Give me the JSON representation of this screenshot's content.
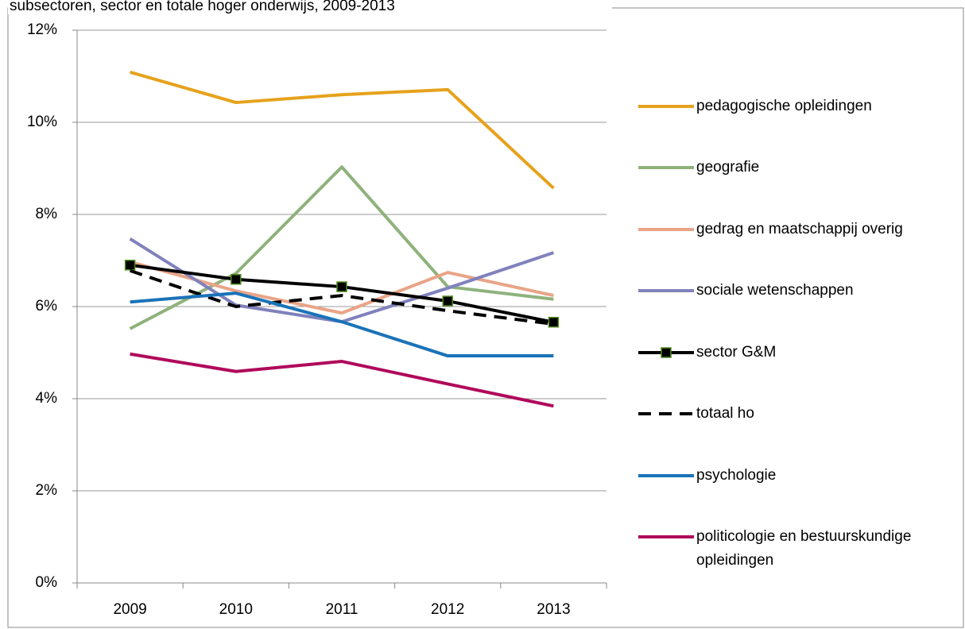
{
  "chart_data": {
    "type": "line",
    "title": "subsectoren, sector en totale hoger onderwijs, 2009-2013",
    "categories": [
      "2009",
      "2010",
      "2011",
      "2012",
      "2013"
    ],
    "ylim": [
      0,
      12
    ],
    "yticks": [
      {
        "value": 0,
        "label": "0%"
      },
      {
        "value": 2,
        "label": "2%"
      },
      {
        "value": 4,
        "label": "4%"
      },
      {
        "value": 6,
        "label": "6%"
      },
      {
        "value": 8,
        "label": "8%"
      },
      {
        "value": 10,
        "label": "10%"
      },
      {
        "value": 12,
        "label": "12%"
      }
    ],
    "grid": true,
    "legend": "right",
    "series": [
      {
        "name": "pedagogische opleidingen",
        "color": "#e6a21c",
        "values": [
          11.09,
          10.43,
          10.6,
          10.71,
          8.57
        ]
      },
      {
        "name": "geografie",
        "color": "#8fb27c",
        "values": [
          5.52,
          6.72,
          9.03,
          6.43,
          6.16
        ]
      },
      {
        "name": "gedrag en maatschappij overig",
        "color": "#e9a487",
        "values": [
          6.97,
          6.34,
          5.86,
          6.74,
          6.24
        ]
      },
      {
        "name": "sociale wetenschappen",
        "color": "#8082bd",
        "values": [
          7.47,
          6.03,
          5.67,
          6.4,
          7.17
        ]
      },
      {
        "name": "sector G&M",
        "color": "#000000",
        "marker": "square",
        "marker_edge": "#4e8a1e",
        "values": [
          6.9,
          6.59,
          6.43,
          6.12,
          5.66
        ]
      },
      {
        "name": "totaal ho",
        "color": "#000000",
        "dashed": true,
        "values": [
          6.78,
          6.0,
          6.24,
          5.91,
          5.62
        ]
      },
      {
        "name": "psychologie",
        "color": "#1a73b8",
        "values": [
          6.1,
          6.29,
          5.67,
          4.93,
          4.93
        ]
      },
      {
        "name": "politicologie en bestuurskundige opleidingen",
        "color": "#b0095b",
        "values": [
          4.97,
          4.59,
          4.81,
          4.32,
          3.84
        ]
      }
    ]
  }
}
